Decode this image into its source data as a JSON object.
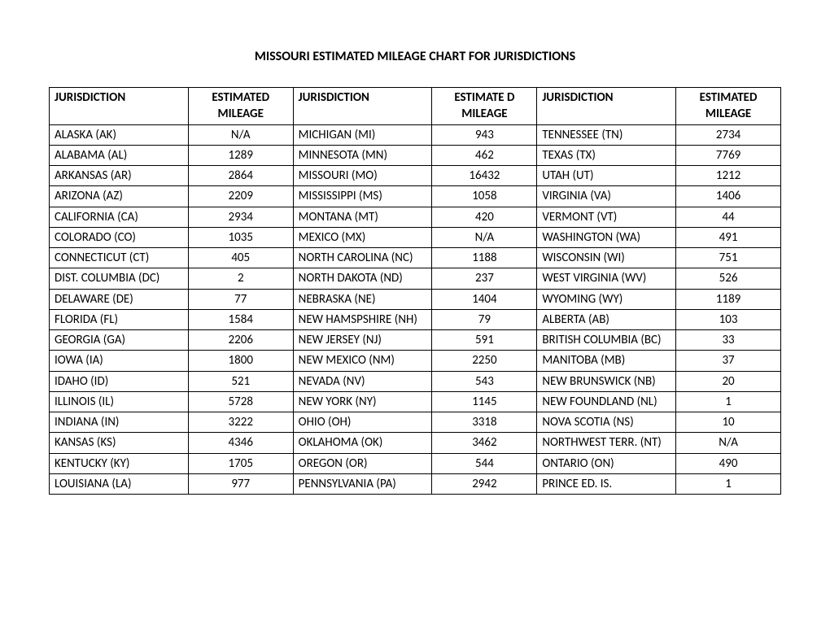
{
  "title": "MISSOURI ESTIMATED MILEAGE CHART FOR JURISDICTIONS",
  "headers": {
    "jurisdiction": "JURISDICTION",
    "mileage1": "ESTIMATED MILEAGE",
    "mileage2": "ESTIMATE D MILEAGE",
    "mileage3": "ESTIMATED MILEAGE"
  },
  "rows": [
    {
      "j1": "ALASKA (AK)",
      "m1": "N/A",
      "j2": "MICHIGAN (MI)",
      "m2": "943",
      "j3": "TENNESSEE (TN)",
      "m3": "2734"
    },
    {
      "j1": "ALABAMA (AL)",
      "m1": "1289",
      "j2": "MINNESOTA (MN)",
      "m2": "462",
      "j3": "TEXAS (TX)",
      "m3": "7769"
    },
    {
      "j1": "ARKANSAS (AR)",
      "m1": "2864",
      "j2": "MISSOURI (MO)",
      "m2": "16432",
      "j3": "UTAH (UT)",
      "m3": "1212"
    },
    {
      "j1": "ARIZONA (AZ)",
      "m1": "2209",
      "j2": "MISSISSIPPI (MS)",
      "m2": "1058",
      "j3": "VIRGINIA (VA)",
      "m3": "1406"
    },
    {
      "j1": "CALIFORNIA (CA)",
      "m1": "2934",
      "j2": "MONTANA (MT)",
      "m2": "420",
      "j3": "VERMONT (VT)",
      "m3": "44"
    },
    {
      "j1": "COLORADO (CO)",
      "m1": "1035",
      "j2": "MEXICO (MX)",
      "m2": "N/A",
      "j3": "WASHINGTON (WA)",
      "m3": "491"
    },
    {
      "j1": "CONNECTICUT (CT)",
      "m1": "405",
      "j2": "NORTH CAROLINA (NC)",
      "m2": "1188",
      "j3": "WISCONSIN (WI)",
      "m3": "751"
    },
    {
      "j1": "DIST. COLUMBIA (DC)",
      "m1": "2",
      "j2": "NORTH DAKOTA (ND)",
      "m2": "237",
      "j3": "WEST VIRGINIA (WV)",
      "m3": "526"
    },
    {
      "j1": "DELAWARE (DE)",
      "m1": "77",
      "j2": "NEBRASKA (NE)",
      "m2": "1404",
      "j3": "WYOMING (WY)",
      "m3": "1189"
    },
    {
      "j1": "FLORIDA (FL)",
      "m1": "1584",
      "j2": "NEW HAMSPSHIRE (NH)",
      "m2": "79",
      "j3": "ALBERTA (AB)",
      "m3": "103"
    },
    {
      "j1": "GEORGIA (GA)",
      "m1": "2206",
      "j2": "NEW JERSEY (NJ)",
      "m2": "591",
      "j3": "BRITISH COLUMBIA (BC)",
      "m3": "33"
    },
    {
      "j1": "IOWA (IA)",
      "m1": "1800",
      "j2": "NEW MEXICO (NM)",
      "m2": "2250",
      "j3": "MANITOBA (MB)",
      "m3": "37"
    },
    {
      "j1": "IDAHO (ID)",
      "m1": "521",
      "j2": "NEVADA (NV)",
      "m2": "543",
      "j3": "NEW BRUNSWICK (NB)",
      "m3": "20"
    },
    {
      "j1": "ILLINOIS (IL)",
      "m1": "5728",
      "j2": "NEW YORK (NY)",
      "m2": "1145",
      "j3": "NEW FOUNDLAND (NL)",
      "m3": "1"
    },
    {
      "j1": "INDIANA (IN)",
      "m1": "3222",
      "j2": "OHIO (OH)",
      "m2": "3318",
      "j3": "NOVA SCOTIA (NS)",
      "m3": "10"
    },
    {
      "j1": "KANSAS (KS)",
      "m1": "4346",
      "j2": "OKLAHOMA (OK)",
      "m2": "3462",
      "j3": "NORTHWEST TERR. (NT)",
      "m3": "N/A"
    },
    {
      "j1": "KENTUCKY (KY)",
      "m1": "1705",
      "j2": "OREGON (OR)",
      "m2": "544",
      "j3": "ONTARIO (ON)",
      "m3": "490"
    },
    {
      "j1": "LOUISIANA (LA)",
      "m1": "977",
      "j2": "PENNSYLVANIA (PA)",
      "m2": "2942",
      "j3": "PRINCE ED. IS.",
      "m3": "1"
    }
  ],
  "styling": {
    "type": "table",
    "background_color": "#ffffff",
    "border_color": "#000000",
    "text_color": "#000000",
    "font_family": "Calibri",
    "title_fontsize": 16,
    "body_fontsize": 15,
    "title_weight": "bold",
    "header_weight": "bold",
    "column_widths_pct": [
      19,
      14.33,
      19,
      14.33,
      19,
      14.33
    ],
    "header_align": "center",
    "jurisdiction_align": "left",
    "mileage_align": "center"
  }
}
